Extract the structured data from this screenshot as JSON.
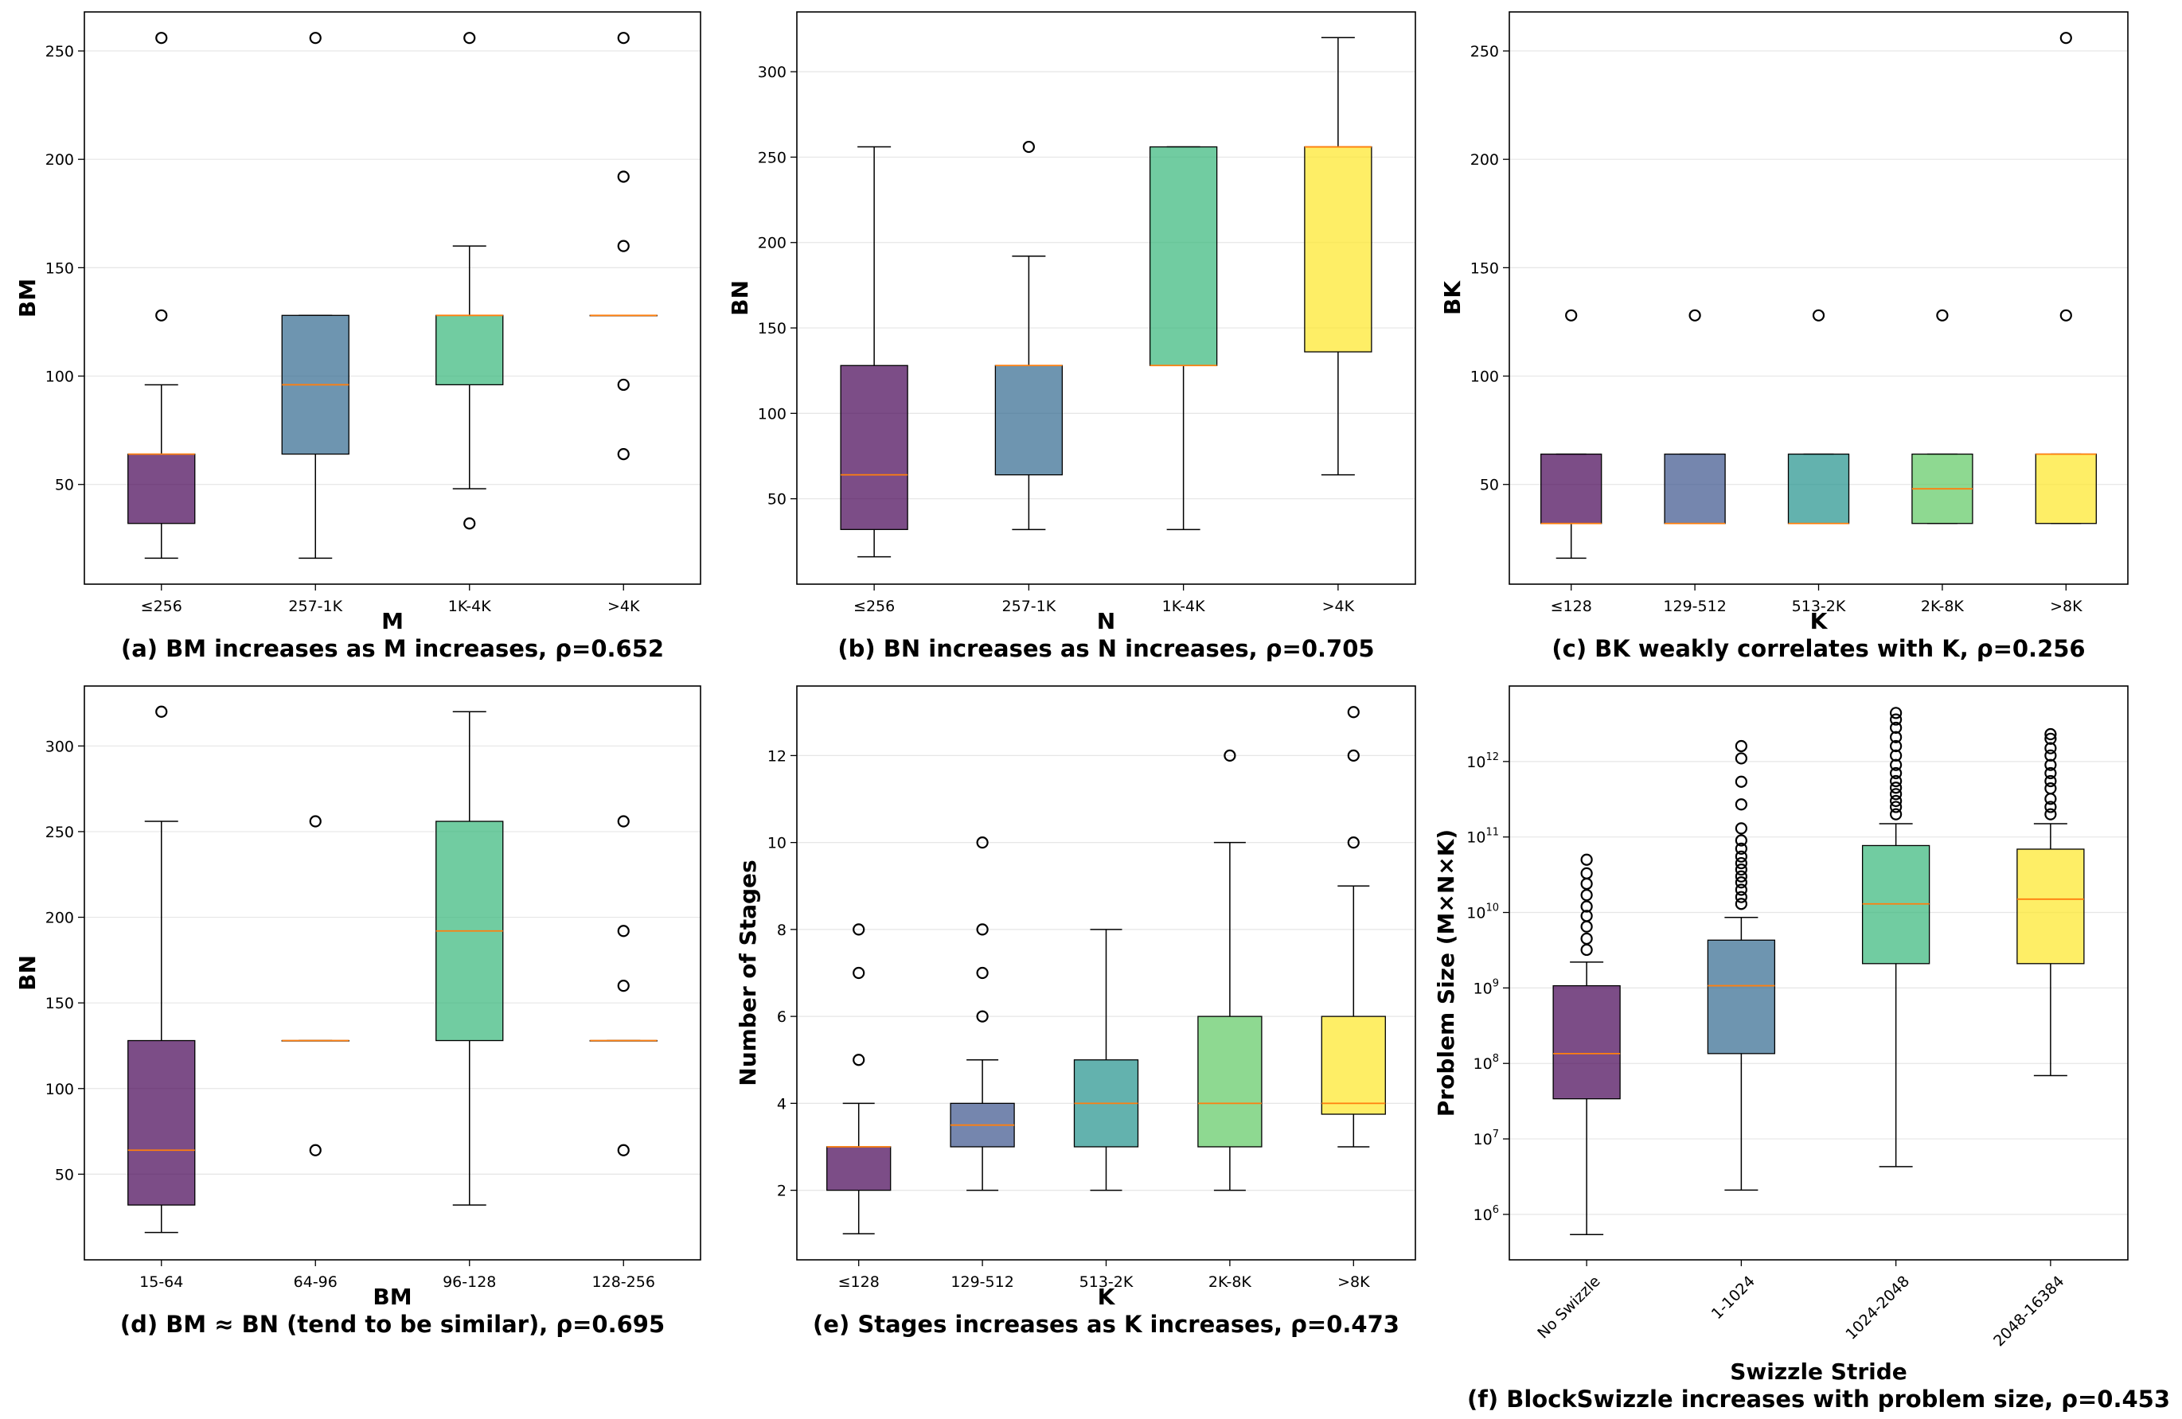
{
  "colors": {
    "purple": "#440154",
    "slate": "#3b528b",
    "blue": "#31688e",
    "teal": "#21918c",
    "green": "#35b779",
    "lightgreen": "#5ec962",
    "yellow": "#fde725",
    "median": "#ff7f0e",
    "grid": "#e6e6e6"
  },
  "chart_data": [
    {
      "id": "a",
      "type": "box",
      "caption": "(a) BM increases as M increases, ρ=0.652",
      "xlabel": "M",
      "ylabel": "BM",
      "ylim": [
        4,
        268
      ],
      "yticks": [
        {
          "v": 50,
          "label": "50"
        },
        {
          "v": 100,
          "label": "100"
        },
        {
          "v": 150,
          "label": "150"
        },
        {
          "v": 200,
          "label": "200"
        },
        {
          "v": 250,
          "label": "250"
        }
      ],
      "boxes": [
        {
          "category": "≤256",
          "color": "purple",
          "whislo": 16,
          "q1": 32,
          "med": 64,
          "q3": 64,
          "whishi": 96,
          "fliers": [
            128,
            256
          ]
        },
        {
          "category": "257-1K",
          "color": "blue",
          "whislo": 16,
          "q1": 64,
          "med": 96,
          "q3": 128,
          "whishi": 128,
          "fliers": [
            256
          ]
        },
        {
          "category": "1K-4K",
          "color": "green",
          "whislo": 48,
          "q1": 96,
          "med": 128,
          "q3": 128,
          "whishi": 160,
          "fliers": [
            32,
            256
          ]
        },
        {
          "category": ">4K",
          "color": "yellow",
          "whislo": 128,
          "q1": 128,
          "med": 128,
          "q3": 128,
          "whishi": 128,
          "fliers": [
            64,
            96,
            160,
            192,
            256
          ]
        }
      ]
    },
    {
      "id": "b",
      "type": "box",
      "caption": "(b) BN increases as N increases, ρ=0.705",
      "xlabel": "N",
      "ylabel": "BN",
      "ylim": [
        0,
        335
      ],
      "yticks": [
        {
          "v": 50,
          "label": "50"
        },
        {
          "v": 100,
          "label": "100"
        },
        {
          "v": 150,
          "label": "150"
        },
        {
          "v": 200,
          "label": "200"
        },
        {
          "v": 250,
          "label": "250"
        },
        {
          "v": 300,
          "label": "300"
        }
      ],
      "boxes": [
        {
          "category": "≤256",
          "color": "purple",
          "whislo": 16,
          "q1": 32,
          "med": 64,
          "q3": 128,
          "whishi": 256,
          "fliers": []
        },
        {
          "category": "257-1K",
          "color": "blue",
          "whislo": 32,
          "q1": 64,
          "med": 128,
          "q3": 128,
          "whishi": 192,
          "fliers": [
            256
          ]
        },
        {
          "category": "1K-4K",
          "color": "green",
          "whislo": 32,
          "q1": 128,
          "med": 128,
          "q3": 256,
          "whishi": 256,
          "fliers": []
        },
        {
          "category": ">4K",
          "color": "yellow",
          "whislo": 64,
          "q1": 136,
          "med": 256,
          "q3": 256,
          "whishi": 320,
          "fliers": []
        }
      ]
    },
    {
      "id": "c",
      "type": "box",
      "caption": "(c) BK weakly correlates with K, ρ=0.256",
      "xlabel": "K",
      "ylabel": "BK",
      "ylim": [
        4,
        268
      ],
      "yticks": [
        {
          "v": 50,
          "label": "50"
        },
        {
          "v": 100,
          "label": "100"
        },
        {
          "v": 150,
          "label": "150"
        },
        {
          "v": 200,
          "label": "200"
        },
        {
          "v": 250,
          "label": "250"
        }
      ],
      "boxes": [
        {
          "category": "≤128",
          "color": "purple",
          "whislo": 16,
          "q1": 32,
          "med": 32,
          "q3": 64,
          "whishi": 64,
          "fliers": [
            128
          ]
        },
        {
          "category": "129-512",
          "color": "slate",
          "whislo": 32,
          "q1": 32,
          "med": 32,
          "q3": 64,
          "whishi": 64,
          "fliers": [
            128
          ]
        },
        {
          "category": "513-2K",
          "color": "teal",
          "whislo": 32,
          "q1": 32,
          "med": 32,
          "q3": 64,
          "whishi": 64,
          "fliers": [
            128
          ]
        },
        {
          "category": "2K-8K",
          "color": "lightgreen",
          "whislo": 32,
          "q1": 32,
          "med": 48,
          "q3": 64,
          "whishi": 64,
          "fliers": [
            128
          ]
        },
        {
          "category": ">8K",
          "color": "yellow",
          "whislo": 32,
          "q1": 32,
          "med": 64,
          "q3": 64,
          "whishi": 64,
          "fliers": [
            128,
            256
          ]
        }
      ]
    },
    {
      "id": "d",
      "type": "box",
      "caption": "(d) BM ≈ BN (tend to be similar), ρ=0.695",
      "xlabel": "BM",
      "ylabel": "BN",
      "ylim": [
        0,
        335
      ],
      "yticks": [
        {
          "v": 50,
          "label": "50"
        },
        {
          "v": 100,
          "label": "100"
        },
        {
          "v": 150,
          "label": "150"
        },
        {
          "v": 200,
          "label": "200"
        },
        {
          "v": 250,
          "label": "250"
        },
        {
          "v": 300,
          "label": "300"
        }
      ],
      "boxes": [
        {
          "category": "15-64",
          "color": "purple",
          "whislo": 16,
          "q1": 32,
          "med": 64,
          "q3": 128,
          "whishi": 256,
          "fliers": [
            320
          ]
        },
        {
          "category": "64-96",
          "color": "blue",
          "whislo": 128,
          "q1": 128,
          "med": 128,
          "q3": 128,
          "whishi": 128,
          "fliers": [
            64,
            256
          ]
        },
        {
          "category": "96-128",
          "color": "green",
          "whislo": 32,
          "q1": 128,
          "med": 192,
          "q3": 256,
          "whishi": 320,
          "fliers": []
        },
        {
          "category": "128-256",
          "color": "yellow",
          "whislo": 128,
          "q1": 128,
          "med": 128,
          "q3": 128,
          "whishi": 128,
          "fliers": [
            64,
            160,
            192,
            256
          ]
        }
      ]
    },
    {
      "id": "e",
      "type": "box",
      "caption": "(e) Stages increases as K increases, ρ=0.473",
      "xlabel": "K",
      "ylabel": "Number of Stages",
      "ylim": [
        0.4,
        13.6
      ],
      "yticks": [
        {
          "v": 2,
          "label": "2"
        },
        {
          "v": 4,
          "label": "4"
        },
        {
          "v": 6,
          "label": "6"
        },
        {
          "v": 8,
          "label": "8"
        },
        {
          "v": 10,
          "label": "10"
        },
        {
          "v": 12,
          "label": "12"
        }
      ],
      "boxes": [
        {
          "category": "≤128",
          "color": "purple",
          "whislo": 1,
          "q1": 2,
          "med": 3,
          "q3": 3,
          "whishi": 4,
          "fliers": [
            5,
            7,
            8
          ]
        },
        {
          "category": "129-512",
          "color": "slate",
          "whislo": 2,
          "q1": 3,
          "med": 3.5,
          "q3": 4,
          "whishi": 5,
          "fliers": [
            6,
            7,
            8,
            10
          ]
        },
        {
          "category": "513-2K",
          "color": "teal",
          "whislo": 2,
          "q1": 3,
          "med": 4,
          "q3": 5,
          "whishi": 8,
          "fliers": []
        },
        {
          "category": "2K-8K",
          "color": "lightgreen",
          "whislo": 2,
          "q1": 3,
          "med": 4,
          "q3": 6,
          "whishi": 10,
          "fliers": [
            12
          ]
        },
        {
          "category": ">8K",
          "color": "yellow",
          "whislo": 3,
          "q1": 3.75,
          "med": 4,
          "q3": 6,
          "whishi": 9,
          "fliers": [
            10,
            12,
            13
          ]
        }
      ]
    },
    {
      "id": "f",
      "type": "box",
      "yscale": "log",
      "caption": "(f) BlockSwizzle increases with problem size, ρ=0.453",
      "xlabel": "Swizzle Stride",
      "ylabel": "Problem Size (M×N×K)",
      "ylim": [
        250000.0,
        10000000000000.0
      ],
      "yticks": [
        {
          "v": 1000000.0,
          "base": "10",
          "exp": "6"
        },
        {
          "v": 10000000.0,
          "base": "10",
          "exp": "7"
        },
        {
          "v": 100000000.0,
          "base": "10",
          "exp": "8"
        },
        {
          "v": 1000000000.0,
          "base": "10",
          "exp": "9"
        },
        {
          "v": 10000000000.0,
          "base": "10",
          "exp": "10"
        },
        {
          "v": 100000000000.0,
          "base": "10",
          "exp": "11"
        },
        {
          "v": 1000000000000.0,
          "base": "10",
          "exp": "12"
        }
      ],
      "boxes": [
        {
          "category": "No Swizzle",
          "color": "purple",
          "whislo": 540000.0,
          "q1": 34000000.0,
          "med": 135000000.0,
          "q3": 1070000000.0,
          "whishi": 2200000000.0,
          "fliers": [
            3200000000.0,
            4500000000.0,
            6500000000.0,
            9000000000.0,
            12000000000.0,
            17000000000.0,
            24000000000.0,
            33000000000.0,
            50000000000.0
          ]
        },
        {
          "category": "1-1024",
          "color": "blue",
          "whislo": 2100000.0,
          "q1": 135000000.0,
          "med": 1070000000.0,
          "q3": 4300000000.0,
          "whishi": 8600000000.0,
          "fliers": [
            13000000000.0,
            16000000000.0,
            20000000000.0,
            25000000000.0,
            30000000000.0,
            37000000000.0,
            45000000000.0,
            55000000000.0,
            70000000000.0,
            90000000000.0,
            130000000000.0,
            270000000000.0,
            540000000000.0,
            1100000000000.0,
            1600000000000.0
          ]
        },
        {
          "category": "1024-2048",
          "color": "green",
          "whislo": 4300000.0,
          "q1": 2100000000.0,
          "med": 13000000000.0,
          "q3": 77000000000.0,
          "whishi": 150000000000.0,
          "fliers": [
            200000000000.0,
            250000000000.0,
            300000000000.0,
            370000000000.0,
            450000000000.0,
            550000000000.0,
            700000000000.0,
            900000000000.0,
            1200000000000.0,
            1600000000000.0,
            2100000000000.0,
            2800000000000.0,
            3600000000000.0,
            4400000000000.0
          ]
        },
        {
          "category": "2048-16384",
          "color": "yellow",
          "whislo": 69000000.0,
          "q1": 2100000000.0,
          "med": 15000000000.0,
          "q3": 69000000000.0,
          "whishi": 150000000000.0,
          "fliers": [
            200000000000.0,
            250000000000.0,
            320000000000.0,
            440000000000.0,
            550000000000.0,
            700000000000.0,
            900000000000.0,
            1200000000000.0,
            1500000000000.0,
            2000000000000.0,
            2300000000000.0
          ]
        }
      ]
    }
  ]
}
